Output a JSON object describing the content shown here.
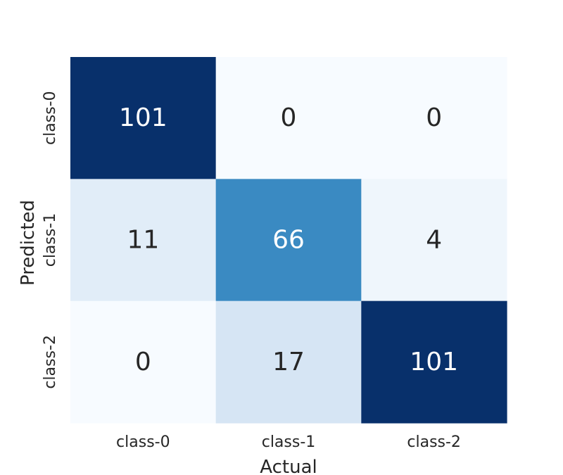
{
  "chart_data": {
    "type": "heatmap",
    "title": "",
    "xlabel": "Actual",
    "ylabel": "Predicted",
    "x_categories": [
      "class-0",
      "class-1",
      "class-2"
    ],
    "y_categories": [
      "class-0",
      "class-1",
      "class-2"
    ],
    "values": [
      [
        101,
        0,
        0
      ],
      [
        11,
        66,
        4
      ],
      [
        0,
        17,
        101
      ]
    ],
    "value_range": [
      0,
      101
    ],
    "colormap": "Blues",
    "colorbar": false,
    "grid": false
  },
  "colors": {
    "low": "#f7fbff",
    "high": "#08306b",
    "text_dark": "#262626",
    "text_light": "#ffffff"
  }
}
